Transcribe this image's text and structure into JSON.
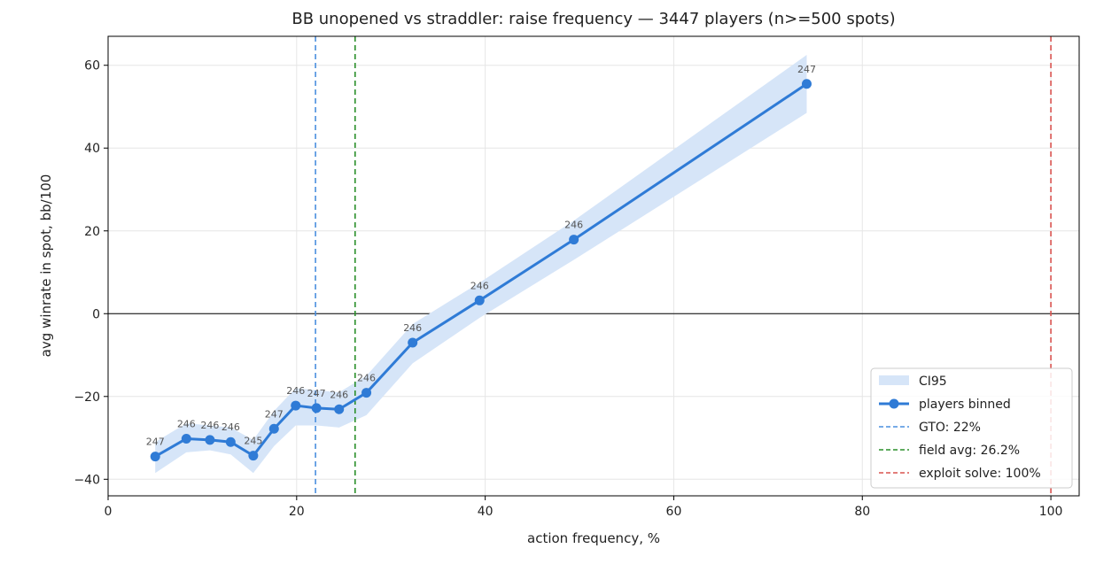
{
  "chart_data": {
    "type": "line",
    "title": "BB unopened vs straddler: raise frequency — 3447 players (n>=500 spots)",
    "xlabel": "action frequency, %",
    "ylabel": "avg winrate in spot, bb/100",
    "xlim": [
      0,
      103
    ],
    "ylim": [
      -44,
      67
    ],
    "xticks": [
      0,
      20,
      40,
      60,
      80,
      100
    ],
    "yticks": [
      -40,
      -20,
      0,
      20,
      40,
      60
    ],
    "grid": true,
    "legend_position": "bottom-right",
    "series": [
      {
        "name": "players binned",
        "color": "#2f7bd6",
        "x": [
          5.0,
          8.3,
          10.8,
          13.0,
          15.4,
          17.6,
          19.9,
          22.1,
          24.5,
          27.4,
          32.3,
          39.4,
          49.4,
          74.1
        ],
        "y": [
          -34.5,
          -30.2,
          -30.5,
          -31.0,
          -34.3,
          -27.8,
          -22.2,
          -22.8,
          -23.1,
          -19.1,
          -7.0,
          3.2,
          17.9,
          55.5
        ],
        "ci_low": [
          -38.5,
          -33.5,
          -33.0,
          -34.0,
          -38.5,
          -32.0,
          -27.0,
          -27.0,
          -27.5,
          -24.5,
          -12.0,
          -1.0,
          13.0,
          48.5
        ],
        "ci_high": [
          -31.0,
          -26.5,
          -27.0,
          -27.5,
          -30.5,
          -23.5,
          -18.0,
          -18.5,
          -19.0,
          -15.0,
          -2.5,
          7.5,
          22.5,
          62.5
        ],
        "counts": [
          "247",
          "246",
          "246",
          "246",
          "245",
          "247",
          "246",
          "247",
          "246",
          "246",
          "246",
          "246",
          "246",
          "247"
        ]
      }
    ],
    "ci_label": "CI95",
    "ci_color": "#d6e5f8",
    "reference_lines": [
      {
        "x": 22,
        "label": "GTO: 22%",
        "color": "#4a8fdf"
      },
      {
        "x": 26.2,
        "label": "field avg: 26.2%",
        "color": "#2a8f2a"
      },
      {
        "x": 100,
        "label": "exploit solve: 100%",
        "color": "#d9534f"
      }
    ]
  }
}
